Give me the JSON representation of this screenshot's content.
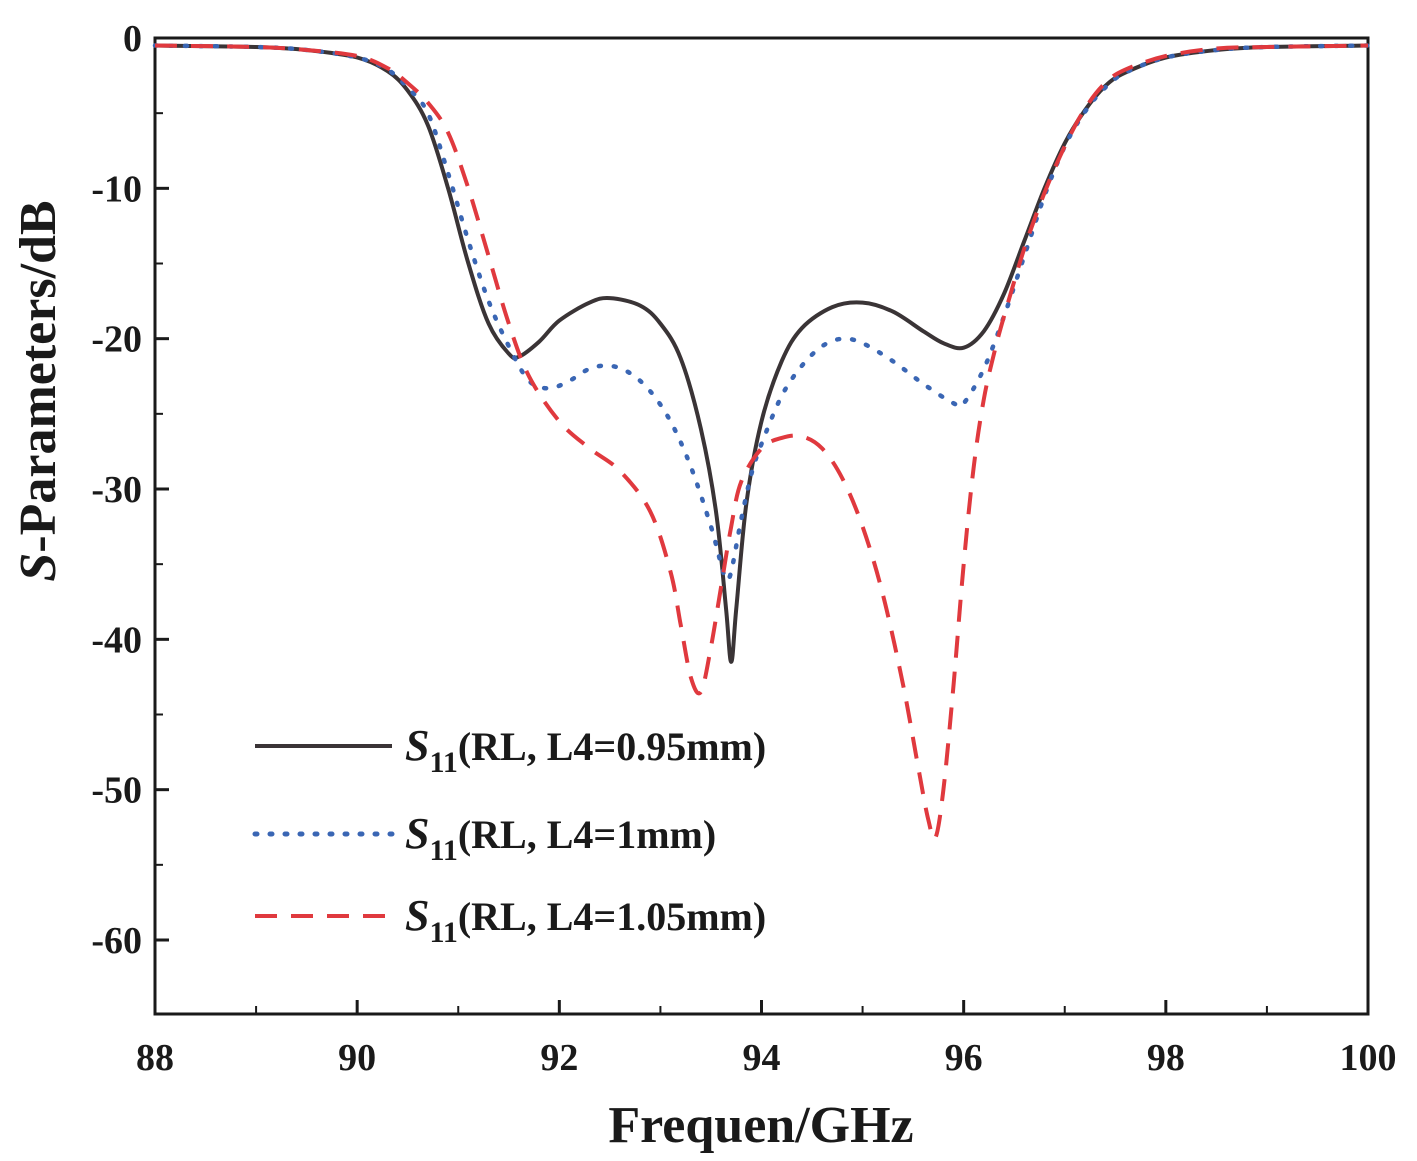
{
  "chart_data": {
    "type": "line",
    "xlabel": "Frequen/GHz",
    "ylabel_italic_prefix": "S",
    "ylabel_rest": "-Parameters/dB",
    "xlim": [
      88,
      100
    ],
    "ylim": [
      -65,
      0
    ],
    "x_ticks": [
      88,
      90,
      92,
      94,
      96,
      98,
      100
    ],
    "y_ticks": [
      0,
      -10,
      -20,
      -30,
      -40,
      -50,
      -60
    ],
    "grid": false,
    "legend_position": "bottom-left",
    "series": [
      {
        "label_s": "S",
        "label_sub": "11",
        "label_rest": "(RL, L4=0.95mm)",
        "color": "#3a3436",
        "style": "solid",
        "x": [
          88,
          89,
          89.5,
          90,
          90.3,
          90.5,
          90.7,
          90.9,
          91.1,
          91.3,
          91.5,
          91.6,
          91.8,
          92.0,
          92.3,
          92.5,
          92.8,
          93.0,
          93.2,
          93.4,
          93.55,
          93.65,
          93.7,
          93.75,
          93.85,
          94.0,
          94.2,
          94.4,
          94.7,
          95.0,
          95.3,
          95.6,
          95.8,
          96.0,
          96.2,
          96.4,
          96.6,
          96.8,
          97.0,
          97.2,
          97.4,
          97.6,
          98.0,
          98.5,
          99,
          100
        ],
        "y": [
          -0.5,
          -0.6,
          -0.8,
          -1.3,
          -2.2,
          -3.5,
          -5.8,
          -10.0,
          -15.0,
          -19.0,
          -21.0,
          -21.2,
          -20.2,
          -18.8,
          -17.6,
          -17.3,
          -17.8,
          -19.0,
          -21.3,
          -26.0,
          -31.5,
          -38.0,
          -41.5,
          -38.0,
          -31.0,
          -25.5,
          -21.5,
          -19.3,
          -17.9,
          -17.6,
          -18.2,
          -19.5,
          -20.3,
          -20.6,
          -19.5,
          -17.0,
          -13.5,
          -10.0,
          -7.0,
          -4.8,
          -3.2,
          -2.3,
          -1.3,
          -0.8,
          -0.6,
          -0.5
        ]
      },
      {
        "label_s": "S",
        "label_sub": "11",
        "label_rest": "(RL, L4=1mm)",
        "color": "#3a66b4",
        "style": "dotted",
        "x": [
          88,
          89,
          89.5,
          90,
          90.3,
          90.5,
          90.7,
          90.9,
          91.1,
          91.3,
          91.5,
          91.7,
          91.9,
          92.1,
          92.3,
          92.5,
          92.7,
          92.9,
          93.1,
          93.3,
          93.5,
          93.6,
          93.65,
          93.7,
          93.8,
          93.9,
          94.0,
          94.2,
          94.4,
          94.6,
          94.8,
          95.0,
          95.3,
          95.6,
          95.9,
          96.0,
          96.2,
          96.4,
          96.6,
          96.8,
          97.0,
          97.2,
          97.4,
          97.6,
          98.0,
          98.5,
          99,
          100
        ],
        "y": [
          -0.5,
          -0.6,
          -0.8,
          -1.3,
          -2.1,
          -3.3,
          -5.0,
          -9.0,
          -13.5,
          -17.5,
          -20.5,
          -22.8,
          -23.3,
          -22.8,
          -22.0,
          -21.8,
          -22.3,
          -23.5,
          -25.5,
          -28.5,
          -32.5,
          -35.0,
          -36.0,
          -35.5,
          -32.0,
          -29.0,
          -27.0,
          -23.8,
          -21.8,
          -20.5,
          -20.0,
          -20.3,
          -21.5,
          -23.0,
          -24.3,
          -24.3,
          -22.0,
          -18.5,
          -14.5,
          -10.5,
          -7.2,
          -4.9,
          -3.3,
          -2.3,
          -1.3,
          -0.8,
          -0.6,
          -0.5
        ]
      },
      {
        "label_s": "S",
        "label_sub": "11",
        "label_rest": "(RL, L4=1.05mm)",
        "color": "#e0393e",
        "style": "dashed",
        "x": [
          88,
          89,
          89.5,
          90,
          90.3,
          90.5,
          90.7,
          90.9,
          91.1,
          91.3,
          91.5,
          91.7,
          92.0,
          92.3,
          92.6,
          92.9,
          93.1,
          93.2,
          93.3,
          93.4,
          93.5,
          93.6,
          93.7,
          93.8,
          94.0,
          94.2,
          94.4,
          94.6,
          94.8,
          95.0,
          95.2,
          95.4,
          95.55,
          95.65,
          95.72,
          95.8,
          95.9,
          96.0,
          96.1,
          96.2,
          96.3,
          96.4,
          96.6,
          96.8,
          97.0,
          97.2,
          97.4,
          97.6,
          98.0,
          98.5,
          99,
          100
        ],
        "y": [
          -0.5,
          -0.6,
          -0.8,
          -1.2,
          -2.0,
          -3.0,
          -4.3,
          -6.3,
          -10.0,
          -14.5,
          -19.0,
          -22.5,
          -25.5,
          -27.3,
          -28.8,
          -31.5,
          -35.5,
          -39.0,
          -42.5,
          -43.5,
          -40.5,
          -36.5,
          -32.5,
          -29.5,
          -27.3,
          -26.6,
          -26.5,
          -27.3,
          -29.3,
          -32.5,
          -37.0,
          -43.0,
          -48.5,
          -52.0,
          -53.2,
          -50.0,
          -43.0,
          -35.0,
          -28.5,
          -24.0,
          -21.0,
          -18.5,
          -14.0,
          -10.3,
          -7.2,
          -4.7,
          -3.0,
          -2.1,
          -1.2,
          -0.7,
          -0.6,
          -0.5
        ]
      }
    ]
  }
}
